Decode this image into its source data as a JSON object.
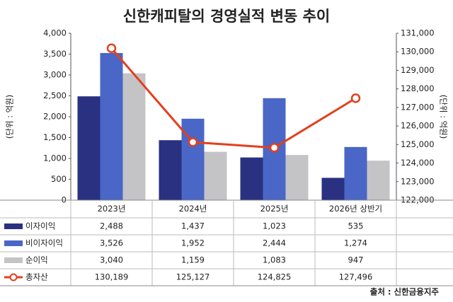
{
  "chart_data": {
    "type": "bar",
    "title": "신한캐피탈의 경영실적 변동 추이",
    "y_label": "(단위 : 억원)",
    "y2_label": "(단위 : 억원)",
    "source": "출처 : 신한금융지주",
    "categories": [
      "2023년",
      "2024년",
      "2025년",
      "2026년 상반기"
    ],
    "series": [
      {
        "name": "이자이익",
        "color": "#2a3180",
        "type": "bar",
        "values": [
          2488,
          1437,
          1023,
          535
        ],
        "value_labels": [
          "2,488",
          "1,437",
          "1,023",
          "535"
        ]
      },
      {
        "name": "비이자이익",
        "color": "#4a66c6",
        "type": "bar",
        "values": [
          3526,
          1952,
          2444,
          1274
        ],
        "value_labels": [
          "3,526",
          "1,952",
          "2,444",
          "1,274"
        ]
      },
      {
        "name": "순이익",
        "color": "#c4c4c7",
        "type": "bar",
        "values": [
          3040,
          1159,
          1083,
          947
        ],
        "value_labels": [
          "3,040",
          "1,159",
          "1,083",
          "947"
        ]
      },
      {
        "name": "총자산",
        "color": "#e2401d",
        "type": "line",
        "axis": "y2",
        "values": [
          130189,
          125127,
          124825,
          127496
        ],
        "value_labels": [
          "130,189",
          "125,127",
          "124,825",
          "127,496"
        ]
      }
    ],
    "ylim": [
      0,
      4000
    ],
    "yticks": [
      0,
      500,
      {
        "value": 1000,
        "label": "1,000"
      },
      {
        "value": 1500,
        "label": "1,500"
      },
      {
        "value": 2000,
        "label": "2,000"
      },
      {
        "value": 2500,
        "label": "2,500"
      },
      {
        "value": 3000,
        "label": "3,000"
      },
      {
        "value": 3500,
        "label": "3,500"
      },
      {
        "value": 4000,
        "label": "4,000"
      }
    ],
    "y2lim": [
      122000,
      131000
    ],
    "y2ticks": [
      {
        "value": 122000,
        "label": "122,000"
      },
      {
        "value": 123000,
        "label": "123,000"
      },
      {
        "value": 124000,
        "label": "124,000"
      },
      {
        "value": 125000,
        "label": "125,000"
      },
      {
        "value": 126000,
        "label": "126,000"
      },
      {
        "value": 127000,
        "label": "127,000"
      },
      {
        "value": 128000,
        "label": "128,000"
      },
      {
        "value": 129000,
        "label": "129,000"
      },
      {
        "value": 130000,
        "label": "130,000"
      },
      {
        "value": 131000,
        "label": "131,000"
      }
    ]
  }
}
